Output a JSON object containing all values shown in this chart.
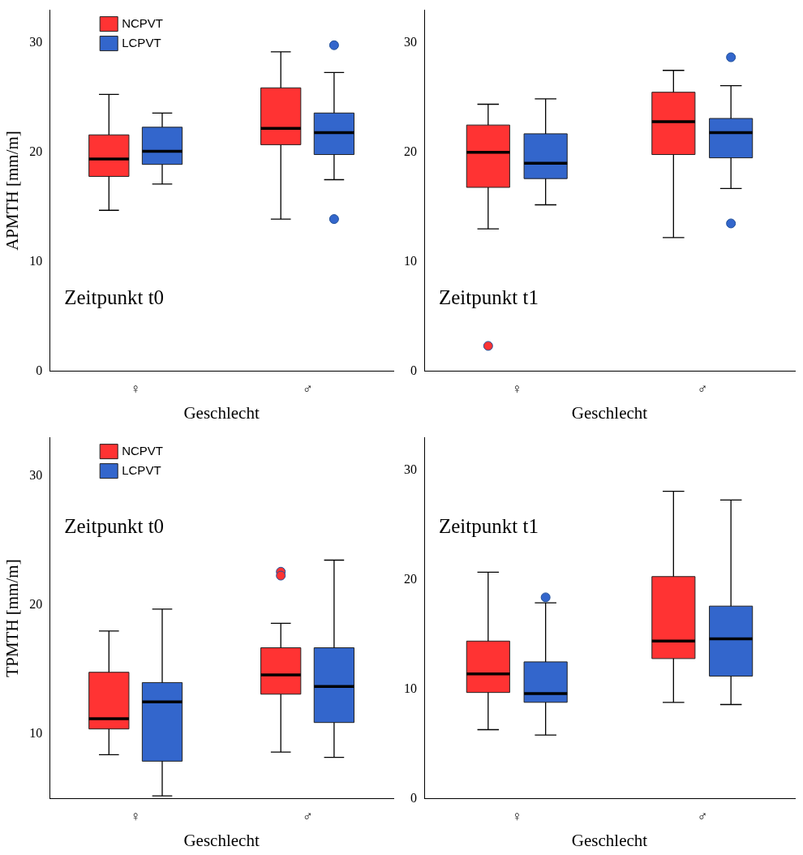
{
  "chart_data": [
    {
      "type": "box",
      "categories": [
        "♀",
        "♂"
      ],
      "xlabel": "Geschlecht",
      "ylabel": "APMTH [mm/m]",
      "ylim": [
        0,
        33
      ],
      "yticks": [
        0,
        10,
        20,
        30
      ],
      "grid": false,
      "legend": "top left",
      "annotations": [
        "Zeitpunkt t0"
      ],
      "series": [
        {
          "name": "NCPVT",
          "color": "#ff3333",
          "boxes": [
            {
              "low": 14.7,
              "q1": 17.8,
              "median": 19.4,
              "q3": 21.6,
              "high": 25.3
            },
            {
              "low": 13.9,
              "q1": 20.7,
              "median": 22.2,
              "q3": 25.9,
              "high": 29.2
            }
          ]
        },
        {
          "name": "LCPVT",
          "color": "#3366cc",
          "boxes": [
            {
              "low": 17.1,
              "q1": 18.9,
              "median": 20.1,
              "q3": 22.3,
              "high": 23.6
            },
            {
              "low": 17.5,
              "q1": 19.8,
              "median": 21.8,
              "q3": 23.6,
              "high": 27.3,
              "outliers": [
                29.8,
                13.9
              ]
            }
          ]
        }
      ]
    },
    {
      "type": "box",
      "categories": [
        "♀",
        "♂"
      ],
      "xlabel": "Geschlecht",
      "ylim": [
        0,
        33
      ],
      "yticks": [
        0,
        10,
        20,
        30
      ],
      "grid": false,
      "annotations": [
        "Zeitpunkt t1"
      ],
      "series": [
        {
          "color": "#ff3333",
          "boxes": [
            {
              "low": 13.0,
              "q1": 16.8,
              "median": 20.0,
              "q3": 22.5,
              "high": 24.4,
              "outliers": [
                2.3
              ]
            },
            {
              "low": 12.2,
              "q1": 19.8,
              "median": 22.8,
              "q3": 25.5,
              "high": 27.5
            }
          ]
        },
        {
          "color": "#3366cc",
          "boxes": [
            {
              "low": 15.2,
              "q1": 17.6,
              "median": 19.0,
              "q3": 21.7,
              "high": 24.9
            },
            {
              "low": 16.7,
              "q1": 19.5,
              "median": 21.8,
              "q3": 23.1,
              "high": 26.1,
              "outliers": [
                28.7,
                13.5
              ]
            }
          ]
        }
      ]
    },
    {
      "type": "box",
      "categories": [
        "♀",
        "♂"
      ],
      "xlabel": "Geschlecht",
      "ylabel": "TPMTH [mm/m]",
      "ylim": [
        5,
        33
      ],
      "yticks": [
        10,
        20,
        30
      ],
      "grid": false,
      "legend": "top left",
      "annotations": [
        "Zeitpunkt t0"
      ],
      "series": [
        {
          "name": "NCPVT",
          "color": "#ff3333",
          "boxes": [
            {
              "low": 8.4,
              "q1": 10.4,
              "median": 11.2,
              "q3": 14.8,
              "high": 18.0
            },
            {
              "low": 8.6,
              "q1": 13.1,
              "median": 14.6,
              "q3": 16.7,
              "high": 18.6,
              "outliers": [
                22.6,
                22.3
              ]
            }
          ]
        },
        {
          "name": "LCPVT",
          "color": "#3366cc",
          "boxes": [
            {
              "low": 5.2,
              "q1": 7.9,
              "median": 12.5,
              "q3": 14.0,
              "high": 19.7
            },
            {
              "low": 8.2,
              "q1": 10.9,
              "median": 13.7,
              "q3": 16.7,
              "high": 23.5
            }
          ]
        }
      ]
    },
    {
      "type": "box",
      "categories": [
        "♀",
        "♂"
      ],
      "xlabel": "Geschlecht",
      "ylim": [
        0,
        33
      ],
      "yticks": [
        0,
        10,
        20,
        30
      ],
      "grid": false,
      "annotations": [
        "Zeitpunkt t1"
      ],
      "series": [
        {
          "color": "#ff3333",
          "boxes": [
            {
              "low": 6.3,
              "q1": 9.7,
              "median": 11.4,
              "q3": 14.4,
              "high": 20.7
            },
            {
              "low": 8.8,
              "q1": 12.8,
              "median": 14.4,
              "q3": 20.3,
              "high": 28.1
            }
          ]
        },
        {
          "color": "#3366cc",
          "boxes": [
            {
              "low": 5.8,
              "q1": 8.8,
              "median": 9.6,
              "q3": 12.5,
              "high": 17.9,
              "outliers": [
                18.4
              ]
            },
            {
              "low": 8.6,
              "q1": 11.2,
              "median": 14.6,
              "q3": 17.6,
              "high": 27.3
            }
          ]
        }
      ]
    }
  ]
}
